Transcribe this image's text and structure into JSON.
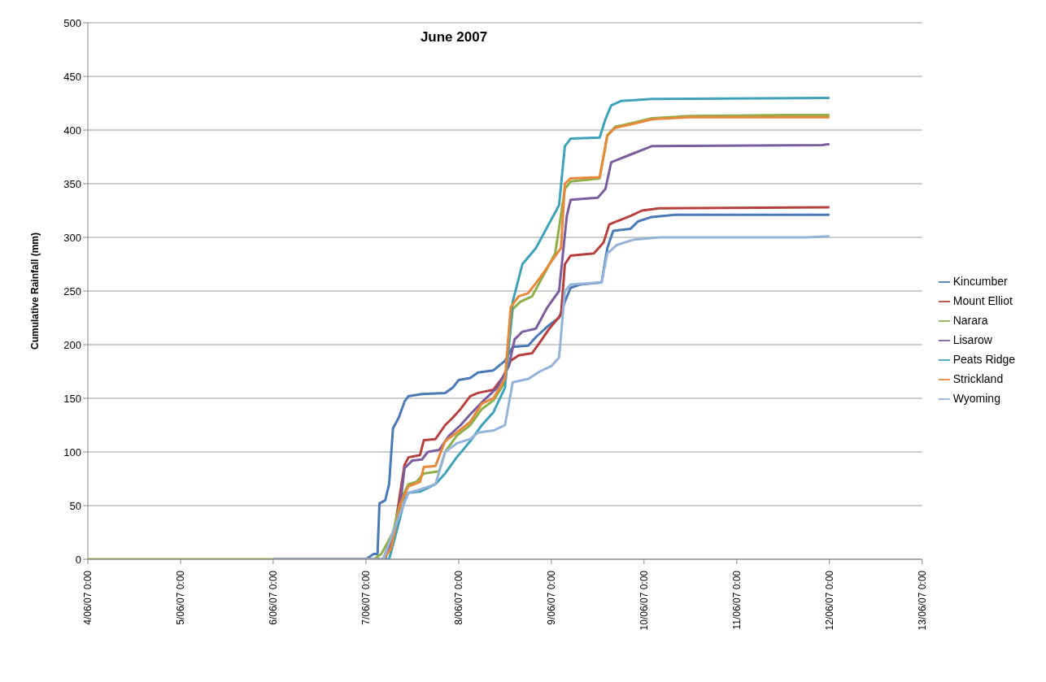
{
  "chart_data": {
    "type": "line",
    "title": "June 2007",
    "ylabel": "Cumulative Rainfall  (mm)",
    "xlim": [
      "2007-06-04T00:00",
      "2007-06-13T00:00"
    ],
    "xticks": [
      {
        "value": "2007-06-04T00:00",
        "label": "4/06/07 0:00"
      },
      {
        "value": "2007-06-05T00:00",
        "label": "5/06/07 0:00"
      },
      {
        "value": "2007-06-06T00:00",
        "label": "6/06/07 0:00"
      },
      {
        "value": "2007-06-07T00:00",
        "label": "7/06/07 0:00"
      },
      {
        "value": "2007-06-08T00:00",
        "label": "8/06/07 0:00"
      },
      {
        "value": "2007-06-09T00:00",
        "label": "9/06/07 0:00"
      },
      {
        "value": "2007-06-10T00:00",
        "label": "10/06/07 0:00"
      },
      {
        "value": "2007-06-11T00:00",
        "label": "11/06/07 0:00"
      },
      {
        "value": "2007-06-12T00:00",
        "label": "12/06/07 0:00"
      },
      {
        "value": "2007-06-13T00:00",
        "label": "13/06/07 0:00"
      }
    ],
    "ylim": [
      0,
      500
    ],
    "yticks": [
      0,
      50,
      100,
      150,
      200,
      250,
      300,
      350,
      400,
      450,
      500
    ],
    "grid": "y",
    "legend": "right",
    "marker": "none",
    "line_style": "solid",
    "series": [
      {
        "name": "Kincumber",
        "color": "#4a7ab5",
        "x": [
          "2007-06-06T00:00",
          "2007-06-07T00:00",
          "2007-06-07T02:00",
          "2007-06-07T03:00",
          "2007-06-07T03:30",
          "2007-06-07T05:00",
          "2007-06-07T06:00",
          "2007-06-07T07:00",
          "2007-06-07T08:30",
          "2007-06-07T10:00",
          "2007-06-07T11:00",
          "2007-06-07T14:30",
          "2007-06-07T20:30",
          "2007-06-07T22:30",
          "2007-06-08T00:00",
          "2007-06-08T03:00",
          "2007-06-08T05:00",
          "2007-06-08T09:00",
          "2007-06-08T12:00",
          "2007-06-08T14:00",
          "2007-06-08T18:00",
          "2007-06-08T20:00",
          "2007-06-08T23:00",
          "2007-06-09T02:00",
          "2007-06-09T03:30",
          "2007-06-09T05:00",
          "2007-06-09T07:30",
          "2007-06-09T13:00",
          "2007-06-09T14:30",
          "2007-06-09T16:00",
          "2007-06-09T20:30",
          "2007-06-09T22:30",
          "2007-06-10T02:00",
          "2007-06-10T08:00",
          "2007-06-12T00:00"
        ],
        "values": [
          0,
          0,
          5,
          5,
          52,
          55,
          70,
          122,
          132,
          147,
          152,
          154,
          155,
          160,
          167,
          169,
          174,
          176,
          185,
          198,
          199,
          207,
          217,
          225,
          240,
          253,
          256,
          258,
          290,
          306,
          308,
          315,
          319,
          321,
          321
        ]
      },
      {
        "name": "Mount Elliot",
        "color": "#b5403d",
        "x": [
          "2007-06-06T00:00",
          "2007-06-07T04:30",
          "2007-06-07T07:30",
          "2007-06-07T10:00",
          "2007-06-07T11:00",
          "2007-06-07T14:00",
          "2007-06-07T15:00",
          "2007-06-07T18:00",
          "2007-06-07T20:30",
          "2007-06-07T22:30",
          "2007-06-08T00:30",
          "2007-06-08T03:00",
          "2007-06-08T05:00",
          "2007-06-08T09:00",
          "2007-06-08T11:30",
          "2007-06-08T13:30",
          "2007-06-08T15:30",
          "2007-06-08T19:00",
          "2007-06-08T21:00",
          "2007-06-08T23:30",
          "2007-06-09T02:30",
          "2007-06-09T03:30",
          "2007-06-09T05:00",
          "2007-06-09T11:00",
          "2007-06-09T13:30",
          "2007-06-09T15:00",
          "2007-06-09T17:00",
          "2007-06-09T20:30",
          "2007-06-09T23:30",
          "2007-06-10T04:00",
          "2007-06-12T00:00"
        ],
        "values": [
          0,
          0,
          30,
          88,
          95,
          97,
          111,
          112,
          125,
          132,
          140,
          152,
          155,
          158,
          170,
          185,
          190,
          192,
          202,
          215,
          228,
          275,
          283,
          285,
          295,
          312,
          315,
          320,
          325,
          327,
          328
        ]
      },
      {
        "name": "Narara",
        "color": "#8db04a",
        "x": [
          "2007-06-04T00:00",
          "2007-06-07T02:00",
          "2007-06-07T04:00",
          "2007-06-07T05:30",
          "2007-06-07T07:00",
          "2007-06-07T09:00",
          "2007-06-07T11:00",
          "2007-06-07T13:00",
          "2007-06-07T15:00",
          "2007-06-07T19:00",
          "2007-06-07T20:30",
          "2007-06-07T23:30",
          "2007-06-08T03:00",
          "2007-06-08T06:00",
          "2007-06-08T09:00",
          "2007-06-08T12:00",
          "2007-06-08T14:00",
          "2007-06-08T16:00",
          "2007-06-08T19:00",
          "2007-06-08T22:00",
          "2007-06-09T01:00",
          "2007-06-09T03:30",
          "2007-06-09T05:00",
          "2007-06-09T12:30",
          "2007-06-09T14:30",
          "2007-06-09T16:30",
          "2007-06-09T21:30",
          "2007-06-10T02:00",
          "2007-06-10T11:30",
          "2007-06-11T14:00",
          "2007-06-12T00:00"
        ],
        "values": [
          0,
          0,
          5,
          15,
          25,
          55,
          70,
          72,
          80,
          82,
          100,
          115,
          125,
          140,
          148,
          165,
          233,
          240,
          245,
          265,
          285,
          345,
          352,
          355,
          395,
          403,
          407,
          411,
          413,
          414,
          414
        ]
      },
      {
        "name": "Lisarow",
        "color": "#7b5c9c",
        "x": [
          "2007-06-06T00:00",
          "2007-06-07T05:00",
          "2007-06-07T08:30",
          "2007-06-07T10:00",
          "2007-06-07T12:00",
          "2007-06-07T14:30",
          "2007-06-07T16:00",
          "2007-06-07T19:00",
          "2007-06-07T21:30",
          "2007-06-08T00:30",
          "2007-06-08T03:00",
          "2007-06-08T06:30",
          "2007-06-08T10:00",
          "2007-06-08T13:00",
          "2007-06-08T14:30",
          "2007-06-08T16:30",
          "2007-06-08T20:00",
          "2007-06-08T23:00",
          "2007-06-09T02:00",
          "2007-06-09T04:00",
          "2007-06-09T05:00",
          "2007-06-09T12:00",
          "2007-06-09T14:00",
          "2007-06-09T15:30",
          "2007-06-09T19:00",
          "2007-06-10T02:00",
          "2007-06-11T22:00",
          "2007-06-12T00:00"
        ],
        "values": [
          0,
          0,
          40,
          85,
          92,
          93,
          100,
          102,
          115,
          125,
          135,
          148,
          160,
          180,
          205,
          212,
          215,
          235,
          250,
          320,
          335,
          337,
          345,
          370,
          375,
          385,
          386,
          387
        ]
      },
      {
        "name": "Peats Ridge",
        "color": "#3fa2b8",
        "x": [
          "2007-06-06T00:00",
          "2007-06-07T06:00",
          "2007-06-07T07:30",
          "2007-06-07T10:00",
          "2007-06-07T11:00",
          "2007-06-07T14:00",
          "2007-06-07T18:00",
          "2007-06-07T20:30",
          "2007-06-07T23:30",
          "2007-06-08T03:00",
          "2007-06-08T06:00",
          "2007-06-08T09:00",
          "2007-06-08T12:00",
          "2007-06-08T14:00",
          "2007-06-08T16:30",
          "2007-06-08T20:00",
          "2007-06-08T23:00",
          "2007-06-09T02:00",
          "2007-06-09T03:30",
          "2007-06-09T05:00",
          "2007-06-09T12:30",
          "2007-06-09T14:00",
          "2007-06-09T15:30",
          "2007-06-09T18:00",
          "2007-06-10T02:00",
          "2007-06-12T00:00"
        ],
        "values": [
          0,
          0,
          20,
          55,
          62,
          63,
          70,
          80,
          95,
          110,
          125,
          137,
          160,
          240,
          275,
          290,
          310,
          330,
          385,
          392,
          393,
          410,
          423,
          427,
          429,
          430
        ]
      },
      {
        "name": "Strickland",
        "color": "#e8883a",
        "x": [
          "2007-06-06T00:00",
          "2007-06-07T04:30",
          "2007-06-07T06:30",
          "2007-06-07T09:00",
          "2007-06-07T11:00",
          "2007-06-07T14:00",
          "2007-06-07T15:00",
          "2007-06-07T18:00",
          "2007-06-07T20:30",
          "2007-06-07T23:30",
          "2007-06-08T03:00",
          "2007-06-08T06:00",
          "2007-06-08T09:00",
          "2007-06-08T12:00",
          "2007-06-08T13:30",
          "2007-06-08T15:30",
          "2007-06-08T18:00",
          "2007-06-08T21:00",
          "2007-06-09T00:30",
          "2007-06-09T02:30",
          "2007-06-09T03:30",
          "2007-06-09T05:00",
          "2007-06-09T12:30",
          "2007-06-09T14:30",
          "2007-06-09T16:30",
          "2007-06-09T21:30",
          "2007-06-10T02:00",
          "2007-06-10T11:30",
          "2007-06-12T00:00"
        ],
        "values": [
          0,
          0,
          10,
          52,
          68,
          72,
          86,
          87,
          110,
          118,
          128,
          145,
          150,
          168,
          235,
          245,
          248,
          262,
          280,
          290,
          350,
          355,
          356,
          395,
          402,
          406,
          410,
          412,
          412
        ]
      },
      {
        "name": "Wyoming",
        "color": "#95b2d8",
        "x": [
          "2007-06-06T00:00",
          "2007-06-07T04:30",
          "2007-06-07T07:30",
          "2007-06-07T11:00",
          "2007-06-07T14:00",
          "2007-06-07T18:00",
          "2007-06-07T20:30",
          "2007-06-07T23:30",
          "2007-06-08T03:00",
          "2007-06-08T05:00",
          "2007-06-08T09:00",
          "2007-06-08T12:00",
          "2007-06-08T14:00",
          "2007-06-08T18:00",
          "2007-06-08T21:00",
          "2007-06-09T00:00",
          "2007-06-09T02:00",
          "2007-06-09T03:30",
          "2007-06-09T05:00",
          "2007-06-09T13:00",
          "2007-06-09T14:30",
          "2007-06-09T17:00",
          "2007-06-09T21:30",
          "2007-06-10T04:00",
          "2007-06-11T18:00",
          "2007-06-12T00:00"
        ],
        "values": [
          0,
          0,
          30,
          62,
          65,
          70,
          100,
          108,
          112,
          118,
          120,
          125,
          165,
          168,
          175,
          180,
          188,
          250,
          256,
          258,
          285,
          293,
          298,
          300,
          300,
          301
        ]
      }
    ]
  }
}
